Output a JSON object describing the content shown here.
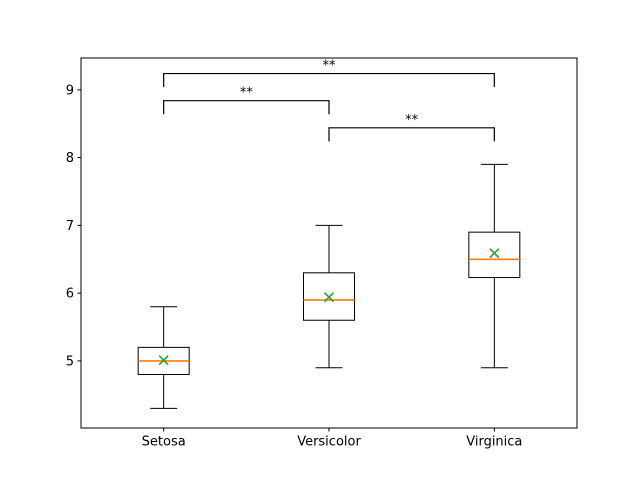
{
  "figure": {
    "background": "#ffffff",
    "title": ""
  },
  "chart_data": {
    "type": "boxplot",
    "title": "",
    "xlabel": "",
    "ylabel": "",
    "grid": false,
    "legend": null,
    "categories": [
      "Setosa",
      "Versicolor",
      "Virginica"
    ],
    "x_positions": [
      1,
      2,
      3
    ],
    "xlim": [
      0.5,
      3.5
    ],
    "ylim": [
      4.01,
      9.47
    ],
    "yticks": [
      5,
      6,
      7,
      8,
      9
    ],
    "series": [
      {
        "name": "Setosa",
        "whisker_low": 4.3,
        "q1": 4.8,
        "median": 5.0,
        "q3": 5.2,
        "whisker_high": 5.8,
        "mean": 5.01
      },
      {
        "name": "Versicolor",
        "whisker_low": 4.9,
        "q1": 5.6,
        "median": 5.9,
        "q3": 6.3,
        "whisker_high": 7.0,
        "mean": 5.94
      },
      {
        "name": "Virginica",
        "whisker_low": 4.9,
        "q1": 6.23,
        "median": 6.5,
        "q3": 6.9,
        "whisker_high": 7.9,
        "mean": 6.59
      }
    ],
    "annotations": [
      {
        "between": [
          0,
          1
        ],
        "label": "**",
        "bar_y": 8.84,
        "tick_drop": 0.2
      },
      {
        "between": [
          1,
          2
        ],
        "label": "**",
        "bar_y": 8.44,
        "tick_drop": 0.2
      },
      {
        "between": [
          0,
          2
        ],
        "label": "**",
        "bar_y": 9.24,
        "tick_drop": 0.2
      }
    ],
    "colors": {
      "box": "#000000",
      "median": "#ff7f0e",
      "mean_marker": "#2ca02c",
      "bracket": "#000000",
      "frame": "#000000",
      "tick_text": "#000000"
    }
  }
}
